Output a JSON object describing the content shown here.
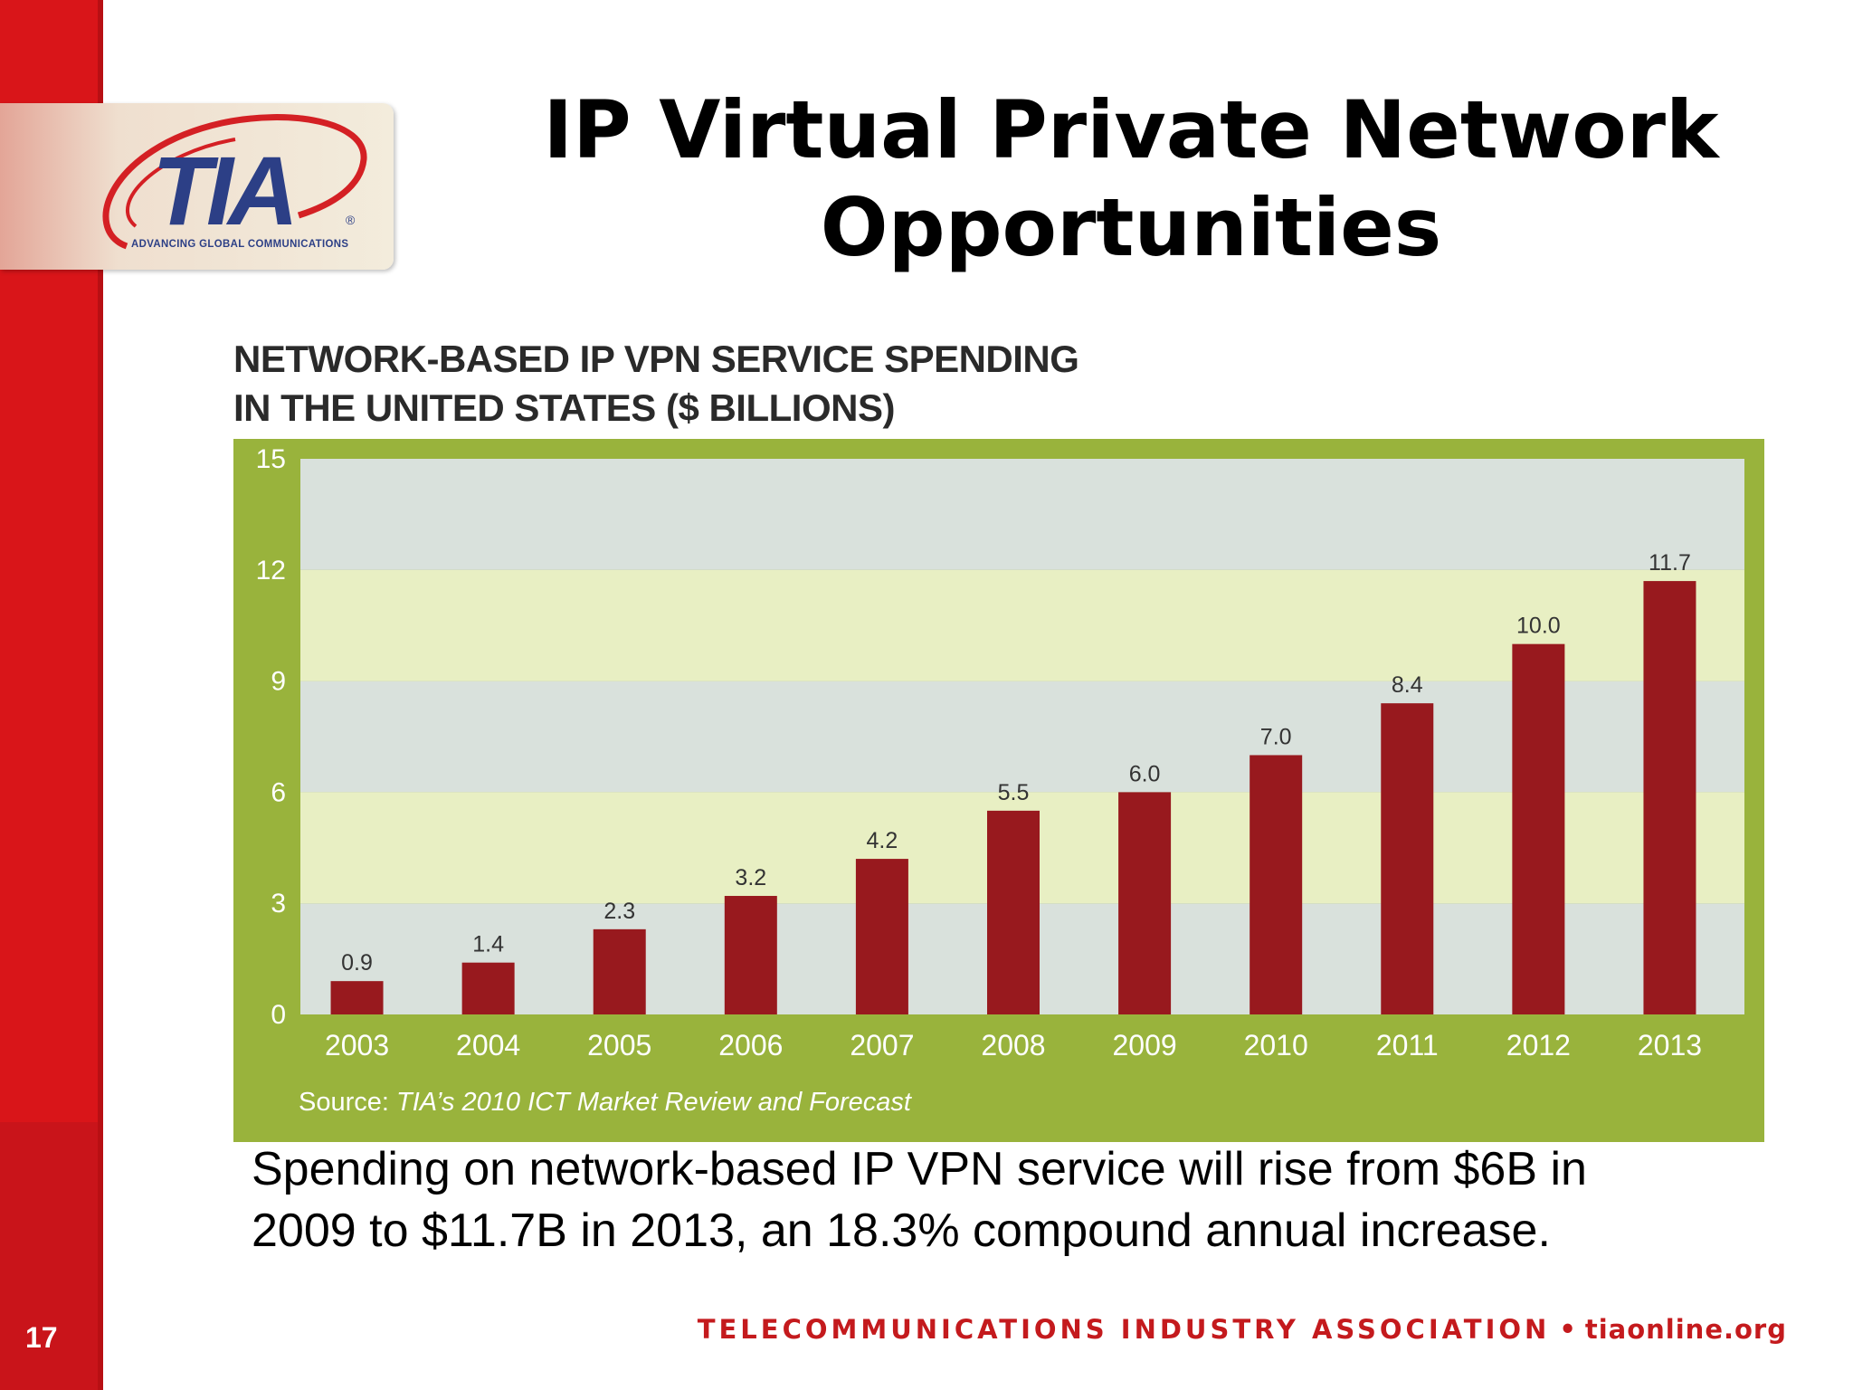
{
  "slide": {
    "number": "17",
    "title_line1": "IP Virtual Private Network",
    "title_line2": "Opportunities",
    "caption_line1": "Spending on network-based IP VPN service will rise from $6B in",
    "caption_line2": "2009 to $11.7B in 2013, an 18.3% compound annual increase."
  },
  "logo": {
    "text": "TIA",
    "registered": "®",
    "tagline": "ADVANCING GLOBAL COMMUNICATIONS"
  },
  "footer": {
    "organization": "TELECOMMUNICATIONS INDUSTRY ASSOCIATION",
    "separator": "•",
    "website": "tiaonline.org"
  },
  "colors": {
    "sidebar_red": "#d91519",
    "bar": "#98191e",
    "chart_frame": "#99b33c",
    "band_gray": "#d9e1dc",
    "band_yellow": "#e8efc3",
    "footer_red": "#c41a1d",
    "logo_blue": "#2c3f86"
  },
  "chart_data": {
    "type": "bar",
    "title_line1": "NETWORK-BASED IP VPN SERVICE SPENDING",
    "title_line2": "IN THE UNITED STATES ($ BILLIONS)",
    "categories": [
      "2003",
      "2004",
      "2005",
      "2006",
      "2007",
      "2008",
      "2009",
      "2010",
      "2011",
      "2012",
      "2013"
    ],
    "values": [
      0.9,
      1.4,
      2.3,
      3.2,
      4.2,
      5.5,
      6.0,
      7.0,
      8.4,
      10.0,
      11.7
    ],
    "value_labels": [
      "0.9",
      "1.4",
      "2.3",
      "3.2",
      "4.2",
      "5.5",
      "6.0",
      "7.0",
      "8.4",
      "10.0",
      "11.7"
    ],
    "yticks": [
      0,
      3,
      6,
      9,
      12,
      15
    ],
    "ylim": [
      0,
      15
    ],
    "xlabel": "",
    "ylabel": "",
    "grid": "alternating horizontal bands",
    "legend": "none",
    "source_prefix": "Source:",
    "source_text": "TIA’s 2010 ICT Market Review and Forecast"
  }
}
